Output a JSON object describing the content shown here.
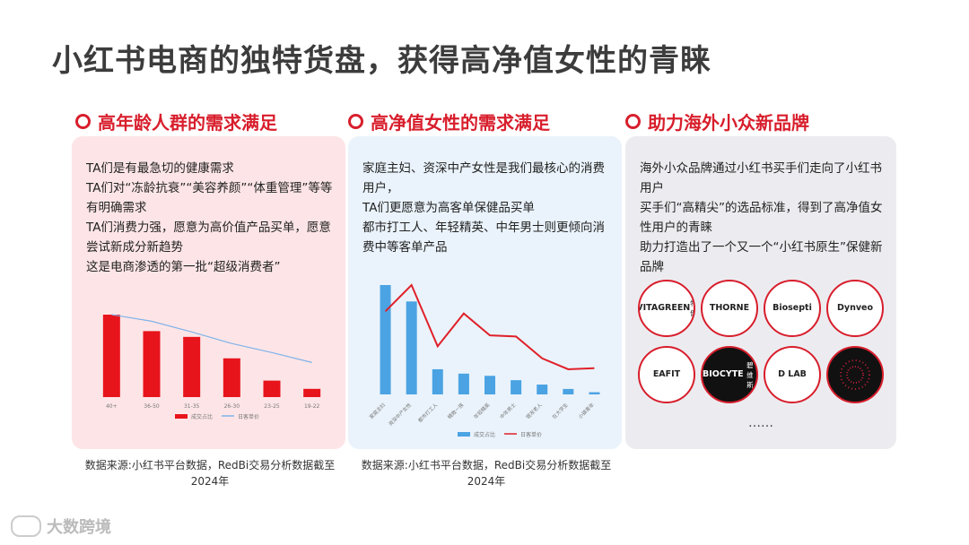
{
  "title": "小红书电商的独特货盘，获得高净值女性的青睐",
  "columns": [
    {
      "header": "高年龄人群的需求满足",
      "lines": [
        "TA们是有最急切的健康需求",
        "TA们对“冻龄抗衰”“美容养颜”“体重管理”等等有明确需求",
        "TA们消费力强，愿意为高价值产品买单，愿意尝试新成分新趋势",
        "这是电商渗透的第一批“超级消费者”"
      ],
      "source": "数据来源:小红书平台数据，RedBi交易分析数据截至2024年"
    },
    {
      "header": "高净值女性的需求满足",
      "lines": [
        "家庭主妇、资深中产女性是我们最核心的消费用户，",
        "TA们更愿意为高客单保健品买单",
        "都市打工人、年轻精英、中年男士则更倾向消费中等客单产品"
      ],
      "source": "数据来源:小红书平台数据，RedBi交易分析数据截至2024年"
    },
    {
      "header": "助力海外小众新品牌",
      "lines": [
        "海外小众品牌通过小红书买手们走向了小红书用户",
        "买手们“高精尖”的选品标准，得到了高净值女性用户的青睐",
        "助力打造出了一个又一个“小红书原生”保健新品牌"
      ],
      "brands": [
        {
          "name": "VITAGREEN",
          "sub": "维特健灵",
          "style": "light"
        },
        {
          "name": "THORNE",
          "sub": "",
          "style": "light"
        },
        {
          "name": "Biosepti",
          "sub": "",
          "style": "light"
        },
        {
          "name": "Dynveo",
          "sub": "",
          "style": "light"
        },
        {
          "name": "EAFIT",
          "sub": "",
          "style": "light"
        },
        {
          "name": "BIOCYTE",
          "sub": "碧维斯",
          "style": "dark"
        },
        {
          "name": "D LAB",
          "sub": "",
          "style": "light"
        },
        {
          "name": "",
          "sub": "",
          "style": "dark"
        }
      ],
      "ellipsis": "……"
    }
  ],
  "chart_data": [
    {
      "type": "bar",
      "categories": [
        "40+",
        "36-50",
        "31-35",
        "26-30",
        "23-25",
        "19-22"
      ],
      "series": [
        {
          "name": "成交占比",
          "kind": "bar",
          "color": "#e8141c",
          "values": [
            100,
            80,
            73,
            47,
            20,
            10
          ]
        },
        {
          "name": "日客单价",
          "kind": "line",
          "color": "#7fb2e8",
          "values": [
            100,
            92,
            79,
            65,
            54,
            42
          ]
        }
      ],
      "ylim": [
        0,
        100
      ],
      "grid": false,
      "legend": "bottom"
    },
    {
      "type": "bar",
      "categories": [
        "家庭主妇",
        "资深中产女性",
        "都市打工人",
        "精致一族",
        "年轻精英",
        "中年男士",
        "银发老人",
        "在大学生",
        "小镇青年"
      ],
      "series": [
        {
          "name": "成交占比",
          "kind": "bar",
          "color": "#4ba3e3",
          "values": [
            100,
            85,
            23,
            19,
            17,
            13,
            9,
            5,
            2
          ]
        },
        {
          "name": "日客单价",
          "kind": "line",
          "color": "#e0202a",
          "values": [
            76,
            100,
            44,
            74,
            54,
            53,
            33,
            23,
            24
          ]
        }
      ],
      "ylim": [
        0,
        100
      ],
      "grid": false,
      "legend": "bottom"
    }
  ],
  "footer": {
    "logo_text": "大数跨境"
  }
}
